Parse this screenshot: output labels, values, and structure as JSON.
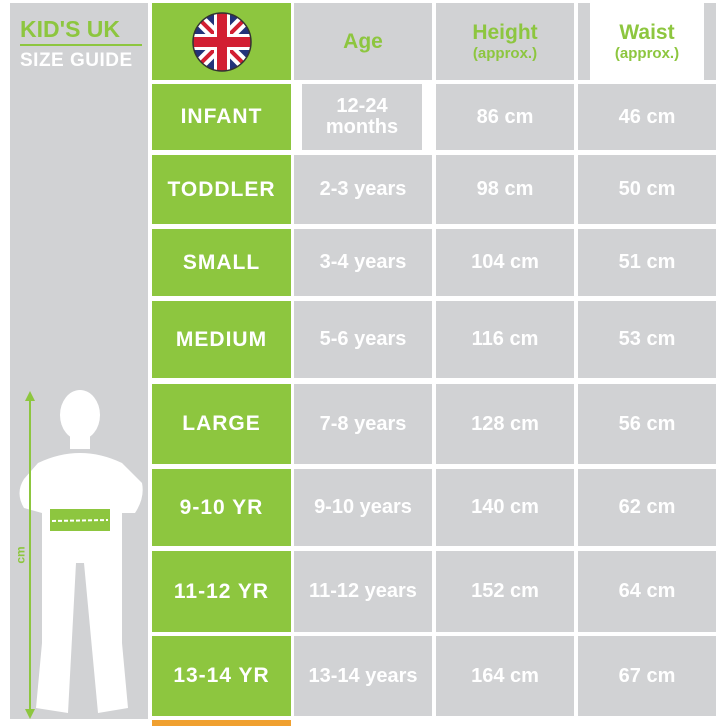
{
  "brand": {
    "line1": "KID'S UK",
    "line2": "SIZE GUIDE"
  },
  "figure": {
    "axis_label": "cm"
  },
  "header": {
    "age": "Age",
    "height": "Height",
    "height_sub": "(approx.)",
    "waist": "Waist",
    "waist_sub": "(approx.)",
    "flag": "uk-flag-icon"
  },
  "rows": [
    {
      "size": "INFANT",
      "age": "12-24 months",
      "height": "86 cm",
      "waist": "46 cm"
    },
    {
      "size": "TODDLER",
      "age": "2-3 years",
      "height": "98 cm",
      "waist": "50 cm"
    },
    {
      "size": "SMALL",
      "age": "3-4 years",
      "height": "104 cm",
      "waist": "51 cm"
    },
    {
      "size": "MEDIUM",
      "age": "5-6 years",
      "height": "116 cm",
      "waist": "53 cm"
    },
    {
      "size": "LARGE",
      "age": "7-8 years",
      "height": "128 cm",
      "waist": "56 cm"
    },
    {
      "size": "9-10 YR",
      "age": "9-10 years",
      "height": "140 cm",
      "waist": "62 cm"
    },
    {
      "size": "11-12 YR",
      "age": "11-12 years",
      "height": "152 cm",
      "waist": "64 cm"
    },
    {
      "size": "13-14 YR",
      "age": "13-14 years",
      "height": "164 cm",
      "waist": "67 cm"
    }
  ],
  "colors": {
    "green": "#8dc63f",
    "gray": "#d1d2d4"
  }
}
